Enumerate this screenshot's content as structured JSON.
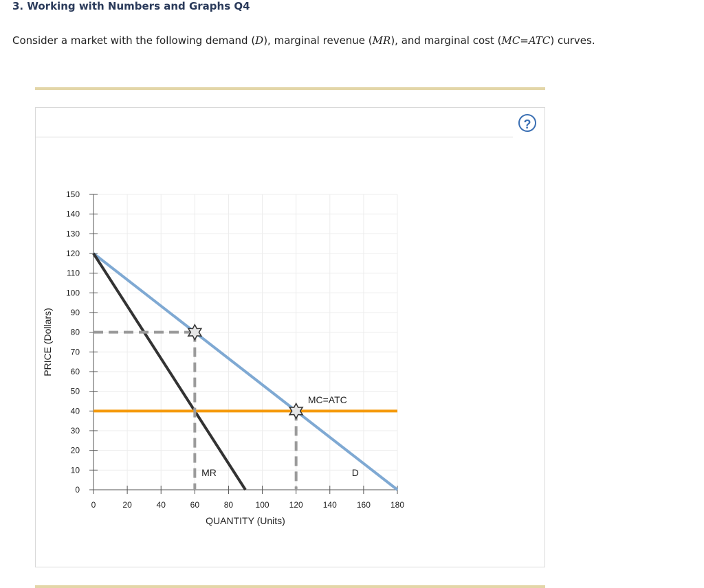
{
  "question": {
    "title": "3. Working with Numbers and Graphs Q4",
    "text_before": "Consider a market with the following demand (",
    "sym_d": "D",
    "text_mid1": "), marginal revenue (",
    "sym_mr": "MR",
    "text_mid2": "), and marginal cost (",
    "sym_mc": "MC=ATC",
    "text_after": ") curves."
  },
  "help_icon": {
    "glyph": "?",
    "name": "help-icon"
  },
  "chart_data": {
    "type": "line",
    "xlabel": "QUANTITY (Units)",
    "ylabel": "PRICE (Dollars)",
    "xlim": [
      0,
      180
    ],
    "ylim": [
      0,
      150
    ],
    "xticks": [
      0,
      20,
      40,
      60,
      80,
      100,
      120,
      140,
      160,
      180
    ],
    "yticks": [
      0,
      10,
      20,
      30,
      40,
      50,
      60,
      70,
      80,
      90,
      100,
      110,
      120,
      130,
      140,
      150
    ],
    "grid": true,
    "series": [
      {
        "name": "D",
        "color": "#7fa9d3",
        "points": [
          [
            0,
            120
          ],
          [
            180,
            0
          ]
        ]
      },
      {
        "name": "MR",
        "color": "#333333",
        "points": [
          [
            0,
            120
          ],
          [
            90,
            0
          ]
        ]
      },
      {
        "name": "MC=ATC",
        "color": "#f59a0c",
        "points": [
          [
            0,
            40
          ],
          [
            180,
            40
          ]
        ]
      }
    ],
    "dashed_lines": [
      {
        "points": [
          [
            0,
            80
          ],
          [
            60,
            80
          ]
        ]
      },
      {
        "points": [
          [
            60,
            80
          ],
          [
            60,
            0
          ]
        ]
      },
      {
        "points": [
          [
            120,
            40
          ],
          [
            120,
            0
          ]
        ]
      }
    ],
    "markers": [
      {
        "x": 60,
        "y": 80
      },
      {
        "x": 120,
        "y": 40
      }
    ],
    "labels": [
      {
        "text": "MC=ATC",
        "x": 127,
        "y": 44
      },
      {
        "text": "MR",
        "x": 64,
        "y": 7
      },
      {
        "text": "D",
        "x": 153,
        "y": 7
      }
    ]
  }
}
